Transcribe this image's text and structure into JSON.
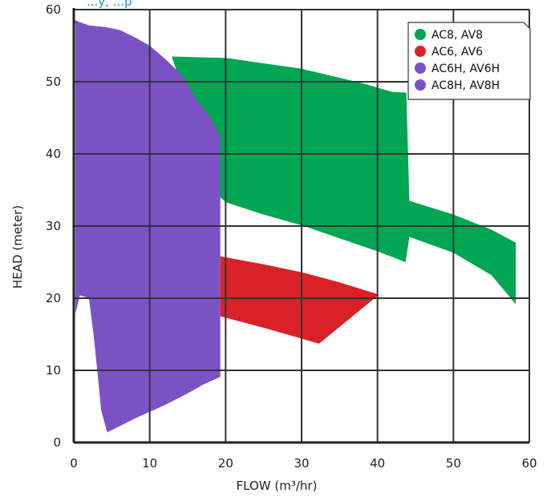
{
  "chart_data": {
    "type": "area",
    "title_fragment": "...y, ...p",
    "xlabel": "FLOW (m³/hr)",
    "ylabel": "HEAD (meter)",
    "xlim": [
      0,
      60
    ],
    "ylim": [
      0,
      60
    ],
    "x_ticks": [
      0,
      10,
      20,
      30,
      40,
      50,
      60
    ],
    "y_ticks": [
      0,
      10,
      20,
      30,
      40,
      50,
      60
    ],
    "grid": true,
    "legend_position": "top-right",
    "series": [
      {
        "name": "AC8, AV8",
        "color": "#00a651",
        "polygons": [
          [
            [
              12.9,
              53.5
            ],
            [
              20,
              53.3
            ],
            [
              30,
              51.8
            ],
            [
              38,
              49.8
            ],
            [
              41.9,
              48.6
            ],
            [
              43.8,
              48.5
            ],
            [
              44.2,
              33.5
            ],
            [
              50,
              31.6
            ],
            [
              55,
              29.5
            ],
            [
              58.2,
              27.7
            ],
            [
              58.2,
              19.2
            ],
            [
              55,
              23.2
            ],
            [
              50,
              26.3
            ],
            [
              44.2,
              28.5
            ],
            [
              43.7,
              25
            ],
            [
              40,
              26.5
            ],
            [
              35,
              28.3
            ],
            [
              30,
              30.1
            ],
            [
              25,
              31.6
            ],
            [
              20,
              33.3
            ],
            [
              19.3,
              34
            ]
          ]
        ]
      },
      {
        "name": "AC6, AV6",
        "color": "#da2127",
        "polygons": [
          [
            [
              19.3,
              25.8
            ],
            [
              25,
              24.7
            ],
            [
              30,
              23.6
            ],
            [
              35,
              22.2
            ],
            [
              40.2,
              20.5
            ],
            [
              32.3,
              13.7
            ],
            [
              30,
              14.4
            ],
            [
              25,
              15.9
            ],
            [
              19.3,
              17.5
            ]
          ]
        ]
      },
      {
        "name": "AC6H, AV6H",
        "color": "#7b52c4",
        "polygons": [
          [
            [
              0,
              58.6
            ],
            [
              1,
              58.2
            ],
            [
              2,
              57.8
            ],
            [
              4,
              57.6
            ],
            [
              6,
              57.2
            ],
            [
              8,
              56.2
            ],
            [
              10,
              55
            ],
            [
              12,
              53.2
            ],
            [
              14.2,
              51
            ],
            [
              16,
              47.8
            ],
            [
              18,
              45
            ],
            [
              19.3,
              42.5
            ],
            [
              19.3,
              9.1
            ],
            [
              17,
              8
            ],
            [
              15,
              6.8
            ],
            [
              12,
              5.2
            ],
            [
              8,
              3.3
            ],
            [
              4.4,
              1.4
            ],
            [
              3.6,
              4.5
            ],
            [
              3.1,
              10
            ],
            [
              2.6,
              15
            ],
            [
              2,
              20
            ],
            [
              0.8,
              20.4
            ],
            [
              0.2,
              17.8
            ],
            [
              0.2,
              58
            ]
          ]
        ]
      },
      {
        "name": "AC8H, AV8H",
        "color": "#7b52c4",
        "polygons": []
      }
    ]
  }
}
